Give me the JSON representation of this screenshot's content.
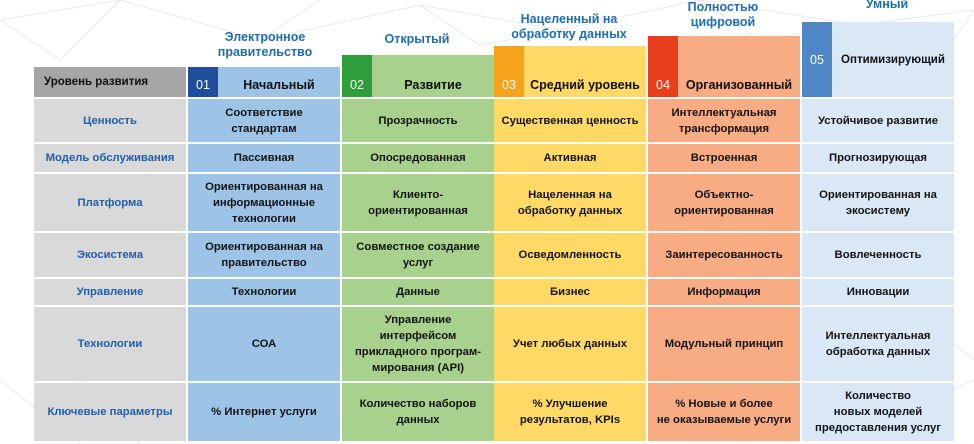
{
  "header": {
    "row_label": "Уровень развития"
  },
  "levels": [
    {
      "num": "01",
      "name": "Начальный",
      "title": "Электронное\nправительство",
      "color": "#9dc3e6",
      "num_color": "#1f4e9c"
    },
    {
      "num": "02",
      "name": "Развитие",
      "title": "Открытый",
      "color": "#a9d18e",
      "num_color": "#2e9e3a"
    },
    {
      "num": "03",
      "name": "Средний уровень",
      "title": "Нацеленный на\nобработку данных",
      "color": "#ffd966",
      "num_color": "#f5a31a"
    },
    {
      "num": "04",
      "name": "Организованный",
      "title": "Полностью\nцифровой",
      "color": "#f8ac84",
      "num_color": "#e8401c"
    },
    {
      "num": "05",
      "name": "Оптимизирующий",
      "title": "Умный",
      "color": "#dae7f5",
      "num_color": "#4f86c6"
    }
  ],
  "rows": [
    {
      "label": "Ценность",
      "cells": [
        "Соответствие\nстандартам",
        "Прозрачность",
        "Существенная ценность",
        "Интеллектуальная\nтрансформация",
        "Устойчивое развитие"
      ]
    },
    {
      "label": "Модель обслуживания",
      "cells": [
        "Пассивная",
        "Опосредованная",
        "Активная",
        "Встроенная",
        "Прогнозирующая"
      ]
    },
    {
      "label": "Платформа",
      "cells": [
        "Ориентированная на\nинформационные\nтехнологии",
        "Клиенто-\nориентированная",
        "Нацеленная на\nобработку данных",
        "Объектно-\nориентированная",
        "Ориентированная на\nэкосистему"
      ]
    },
    {
      "label": "Экосистема",
      "cells": [
        "Ориентированная на\nправительство",
        "Совместное создание\nуслуг",
        "Осведомленность",
        "Заинтересованность",
        "Вовлеченность"
      ]
    },
    {
      "label": "Управление",
      "cells": [
        "Технологии",
        "Данные",
        "Бизнес",
        "Информация",
        "Инновации"
      ]
    },
    {
      "label": "Технологии",
      "cells": [
        "СОА",
        "Управление\nинтерфейсом\nприкладного програм-\nмирования (API)",
        "Учет любых данных",
        "Модульный принцип",
        "Интеллектуальная\nобработка данных"
      ]
    },
    {
      "label": "Ключевые параметры",
      "cells": [
        "% Интернет услуги",
        "Количество наборов\nданных",
        "% Улучшение\nрезультатов, KPIs",
        "% Новые и более\nне оказываемые услуги",
        "Количество\nновых моделей\nпредоставления услуг"
      ]
    }
  ],
  "colors": {
    "label_col": "#d9d9d9",
    "header_label_bg": "#a6a6a6",
    "title_text": "#1f6db5",
    "row_label_text": "#1f5fae"
  }
}
